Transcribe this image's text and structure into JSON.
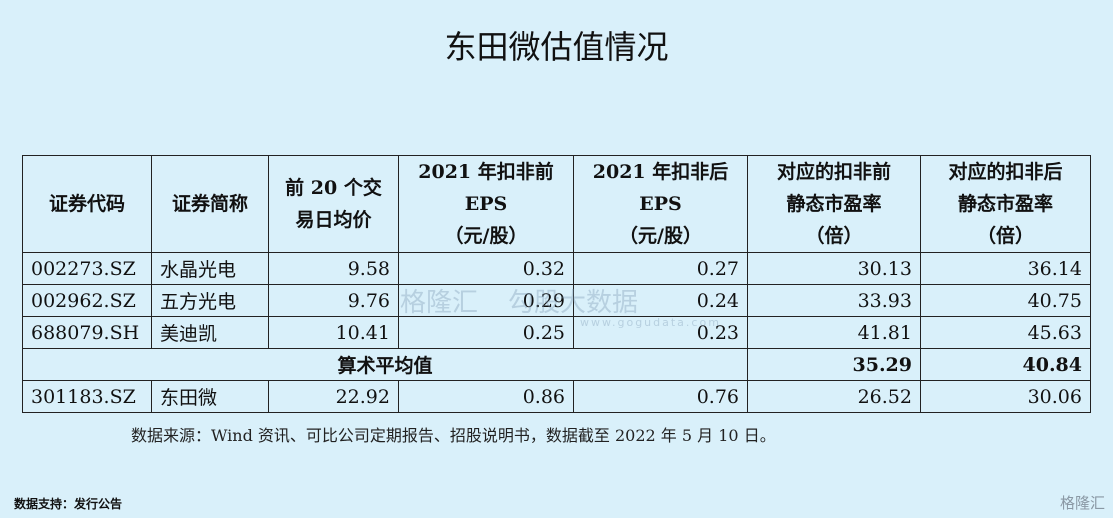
{
  "title": "东田微估值情况",
  "table": {
    "headers": [
      [
        "证券代码"
      ],
      [
        "证券简称"
      ],
      [
        "前 20 个交",
        "易日均价"
      ],
      [
        "2021 年扣非前",
        "EPS",
        "（元/股）"
      ],
      [
        "2021 年扣非后",
        "EPS",
        "（元/股）"
      ],
      [
        "对应的扣非前",
        "静态市盈率",
        "（倍）"
      ],
      [
        "对应的扣非后",
        "静态市盈率",
        "（倍）"
      ]
    ],
    "rows": [
      [
        "002273.SZ",
        "水晶光电",
        "9.58",
        "0.32",
        "0.27",
        "30.13",
        "36.14"
      ],
      [
        "002962.SZ",
        "五方光电",
        "9.76",
        "0.29",
        "0.24",
        "33.93",
        "40.75"
      ],
      [
        "688079.SH",
        "美迪凯",
        "10.41",
        "0.25",
        "0.23",
        "41.81",
        "45.63"
      ]
    ],
    "average": {
      "label": "算术平均值",
      "values": [
        "35.29",
        "40.84"
      ]
    },
    "target": [
      "301183.SZ",
      "东田微",
      "22.92",
      "0.86",
      "0.76",
      "26.52",
      "30.06"
    ]
  },
  "source": "数据来源：Wind 资讯、可比公司定期报告、招股说明书，数据截至 2022 年 5 月 10 日。",
  "footer": "数据支持：发行公告",
  "watermark": {
    "brand": "格隆汇",
    "product": "勾股大数据",
    "url": "www.gogudata.com"
  },
  "logo": "格隆汇"
}
